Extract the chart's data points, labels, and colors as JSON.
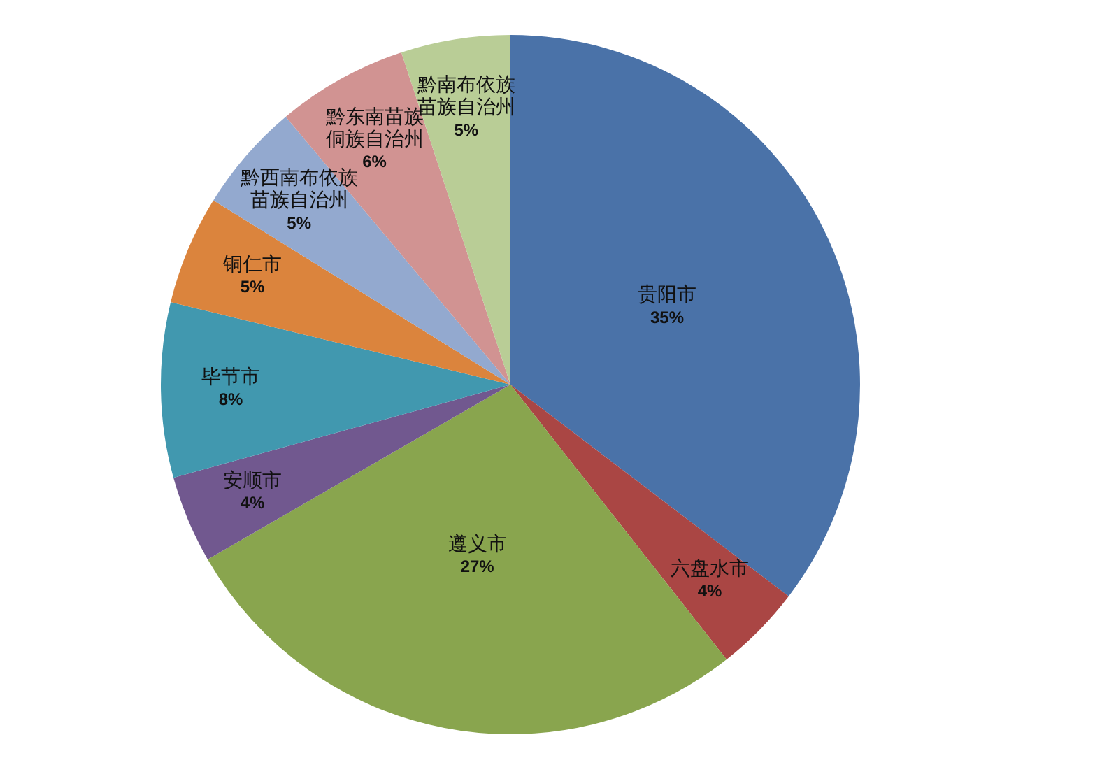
{
  "chart_data": {
    "type": "pie",
    "categories": [
      "贵阳市",
      "六盘水市",
      "遵义市",
      "安顺市",
      "毕节市",
      "铜仁市",
      "黔西南布依族苗族自治州",
      "黔东南苗族侗族自治州",
      "黔南布依族苗族自治州"
    ],
    "values": [
      35,
      4,
      27,
      4,
      8,
      5,
      5,
      6,
      5
    ],
    "value_labels": [
      "35%",
      "4%",
      "27%",
      "4%",
      "8%",
      "5%",
      "5%",
      "6%",
      "5%"
    ],
    "colors": [
      "#4a72a8",
      "#aa4644",
      "#89a54e",
      "#71588f",
      "#4198af",
      "#db843d",
      "#93a9cf",
      "#d19392",
      "#b9cd96"
    ],
    "legend": false
  }
}
